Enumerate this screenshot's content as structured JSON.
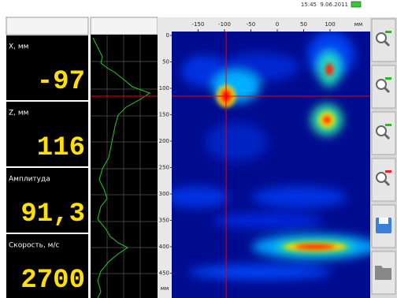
{
  "status_bar": {
    "time": "15:45",
    "date": "9.06.2011"
  },
  "readouts": [
    {
      "label": "X, мм",
      "value": "-97"
    },
    {
      "label": "Z, мм",
      "value": "116"
    },
    {
      "label": "Амплитуда",
      "value": "91,3"
    },
    {
      "label": "Скорость, м/с",
      "value": "2700"
    }
  ],
  "x_axis": {
    "ticks": [
      -150,
      -100,
      -50,
      0,
      50,
      100
    ],
    "unit": "мм"
  },
  "z_axis": {
    "ticks": [
      0,
      50,
      100,
      150,
      200,
      250,
      300,
      350,
      400,
      450
    ],
    "unit": "мм"
  }
}
